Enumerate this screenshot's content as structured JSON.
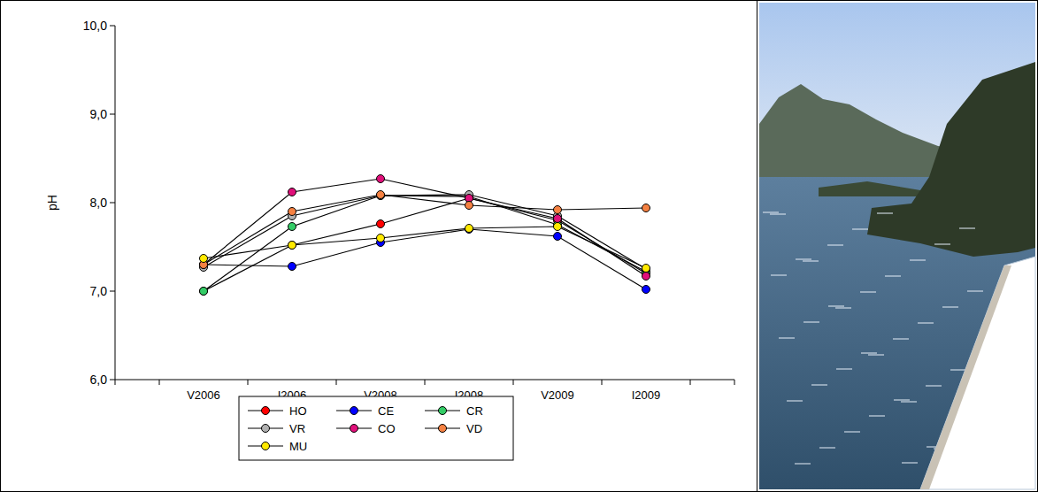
{
  "chart_data": {
    "type": "line",
    "y_label": "pH",
    "categories": [
      "V2006",
      "I2006",
      "V2008",
      "I2008",
      "V2009",
      "I2009"
    ],
    "ylim": [
      6,
      10
    ],
    "yticks": [
      {
        "value": 6,
        "label": "6,0"
      },
      {
        "value": 7,
        "label": "7,0"
      },
      {
        "value": 8,
        "label": "8,0"
      },
      {
        "value": 9,
        "label": "9,0"
      },
      {
        "value": 10,
        "label": "10,0"
      }
    ],
    "marker": "circle",
    "legend": "bottom",
    "series": [
      {
        "name": "HO",
        "color": "#ff0000",
        "values": [
          7.0,
          7.52,
          7.76,
          8.05,
          7.8,
          7.2
        ]
      },
      {
        "name": "CE",
        "color": "#0000ff",
        "values": [
          7.3,
          7.28,
          7.55,
          7.7,
          7.62,
          7.02
        ]
      },
      {
        "name": "CR",
        "color": "#33cc66",
        "values": [
          7.0,
          7.73,
          8.08,
          8.07,
          7.75,
          7.22
        ]
      },
      {
        "name": "VR",
        "color": "#b0b0b0",
        "values": [
          7.27,
          7.85,
          8.08,
          8.09,
          7.85,
          7.25
        ]
      },
      {
        "name": "CO",
        "color": "#e0107a",
        "values": [
          7.3,
          8.12,
          8.27,
          8.05,
          7.82,
          7.17
        ]
      },
      {
        "name": "VD",
        "color": "#f58142",
        "values": [
          7.3,
          7.9,
          8.09,
          7.97,
          7.92,
          7.94
        ]
      },
      {
        "name": "MU",
        "color": "#ffea00",
        "values": [
          7.37,
          7.52,
          7.6,
          7.71,
          7.73,
          7.26
        ]
      }
    ]
  }
}
